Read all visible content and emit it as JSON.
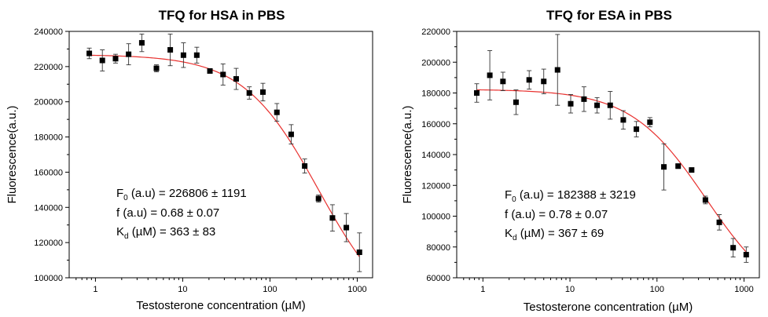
{
  "chart_data": [
    {
      "type": "scatter",
      "title": "TFQ for HSA in PBS",
      "xlabel": "Testosterone concentration (µM)",
      "ylabel": "Fluorescence(a.u.)",
      "xscale": "log",
      "xlim": [
        0.5,
        1500
      ],
      "ylim": [
        100000,
        240000
      ],
      "xticks": [
        1,
        10,
        100,
        1000
      ],
      "xtick_labels": [
        "1",
        "10",
        "100",
        "1000"
      ],
      "yticks": [
        100000,
        120000,
        140000,
        160000,
        180000,
        200000,
        220000,
        240000
      ],
      "ytick_labels": [
        "100000",
        "120000",
        "140000",
        "160000",
        "180000",
        "200000",
        "220000",
        "240000"
      ],
      "grid": false,
      "fit": {
        "F0": 226806,
        "f": 0.68,
        "Kd": 363,
        "color": "#e8312f"
      },
      "annotation": [
        {
          "sym": "F",
          "sub": "0",
          "text": " (a.u) = 226806 ± 1191"
        },
        {
          "sym": "f (a.u) =  0.68 ± 0.07",
          "sub": "",
          "text": ""
        },
        {
          "sym": "K",
          "sub": "d",
          "text": " (µM) = 363 ± 83"
        }
      ],
      "series": [
        {
          "marker": "square",
          "color": "#000000",
          "x": [
            0.85,
            1.2,
            1.7,
            2.4,
            3.4,
            5.0,
            7.2,
            10.2,
            14.5,
            20.5,
            29,
            41,
            58,
            83,
            120,
            175,
            250,
            360,
            520,
            750,
            1060
          ],
          "y": [
            227500,
            223500,
            224500,
            227000,
            233500,
            219000,
            229500,
            226500,
            226500,
            217500,
            215500,
            213000,
            205000,
            205500,
            194000,
            181500,
            163500,
            145000,
            134000,
            128500,
            114500
          ],
          "err": [
            3000,
            6000,
            2500,
            6000,
            5000,
            2000,
            9000,
            7000,
            4500,
            1000,
            6000,
            6000,
            3500,
            5000,
            5000,
            5500,
            4000,
            2000,
            7500,
            8000,
            11000
          ]
        }
      ]
    },
    {
      "type": "scatter",
      "title": "TFQ for ESA in PBS",
      "xlabel": "Testosterone concentration (µM)",
      "ylabel": "Fluorescence(a.u.)",
      "xscale": "log",
      "xlim": [
        0.5,
        1500
      ],
      "ylim": [
        60000,
        220000
      ],
      "xticks": [
        1,
        10,
        100,
        1000
      ],
      "xtick_labels": [
        "1",
        "10",
        "100",
        "1000"
      ],
      "yticks": [
        60000,
        80000,
        100000,
        120000,
        140000,
        160000,
        180000,
        200000,
        220000
      ],
      "ytick_labels": [
        "60000",
        "80000",
        "100000",
        "120000",
        "140000",
        "160000",
        "180000",
        "200000",
        "220000"
      ],
      "grid": false,
      "fit": {
        "F0": 182388,
        "f": 0.78,
        "Kd": 367,
        "color": "#e8312f"
      },
      "annotation": [
        {
          "sym": "F",
          "sub": "0",
          "text": " (a.u) = 182388 ± 3219"
        },
        {
          "sym": "f (a.u) =  0.78 ± 0.07",
          "sub": "",
          "text": ""
        },
        {
          "sym": "K",
          "sub": "d",
          "text": " (µM) = 367 ± 69"
        }
      ],
      "series": [
        {
          "marker": "square",
          "color": "#000000",
          "x": [
            0.85,
            1.2,
            1.7,
            2.4,
            3.4,
            5.0,
            7.2,
            10.2,
            14.5,
            20.5,
            29,
            41,
            58,
            83,
            120,
            175,
            250,
            360,
            520,
            750,
            1060
          ],
          "y": [
            180000,
            191500,
            187500,
            174000,
            188500,
            187500,
            195000,
            173000,
            176000,
            172000,
            172000,
            162500,
            156500,
            161000,
            132000,
            132500,
            130000,
            110500,
            96000,
            79500,
            75000
          ],
          "err": [
            6000,
            16000,
            6000,
            8000,
            6000,
            8000,
            23000,
            6000,
            8000,
            5000,
            9000,
            6000,
            5000,
            3000,
            15000,
            1500,
            1000,
            2500,
            5000,
            6000,
            5000
          ]
        }
      ]
    }
  ]
}
